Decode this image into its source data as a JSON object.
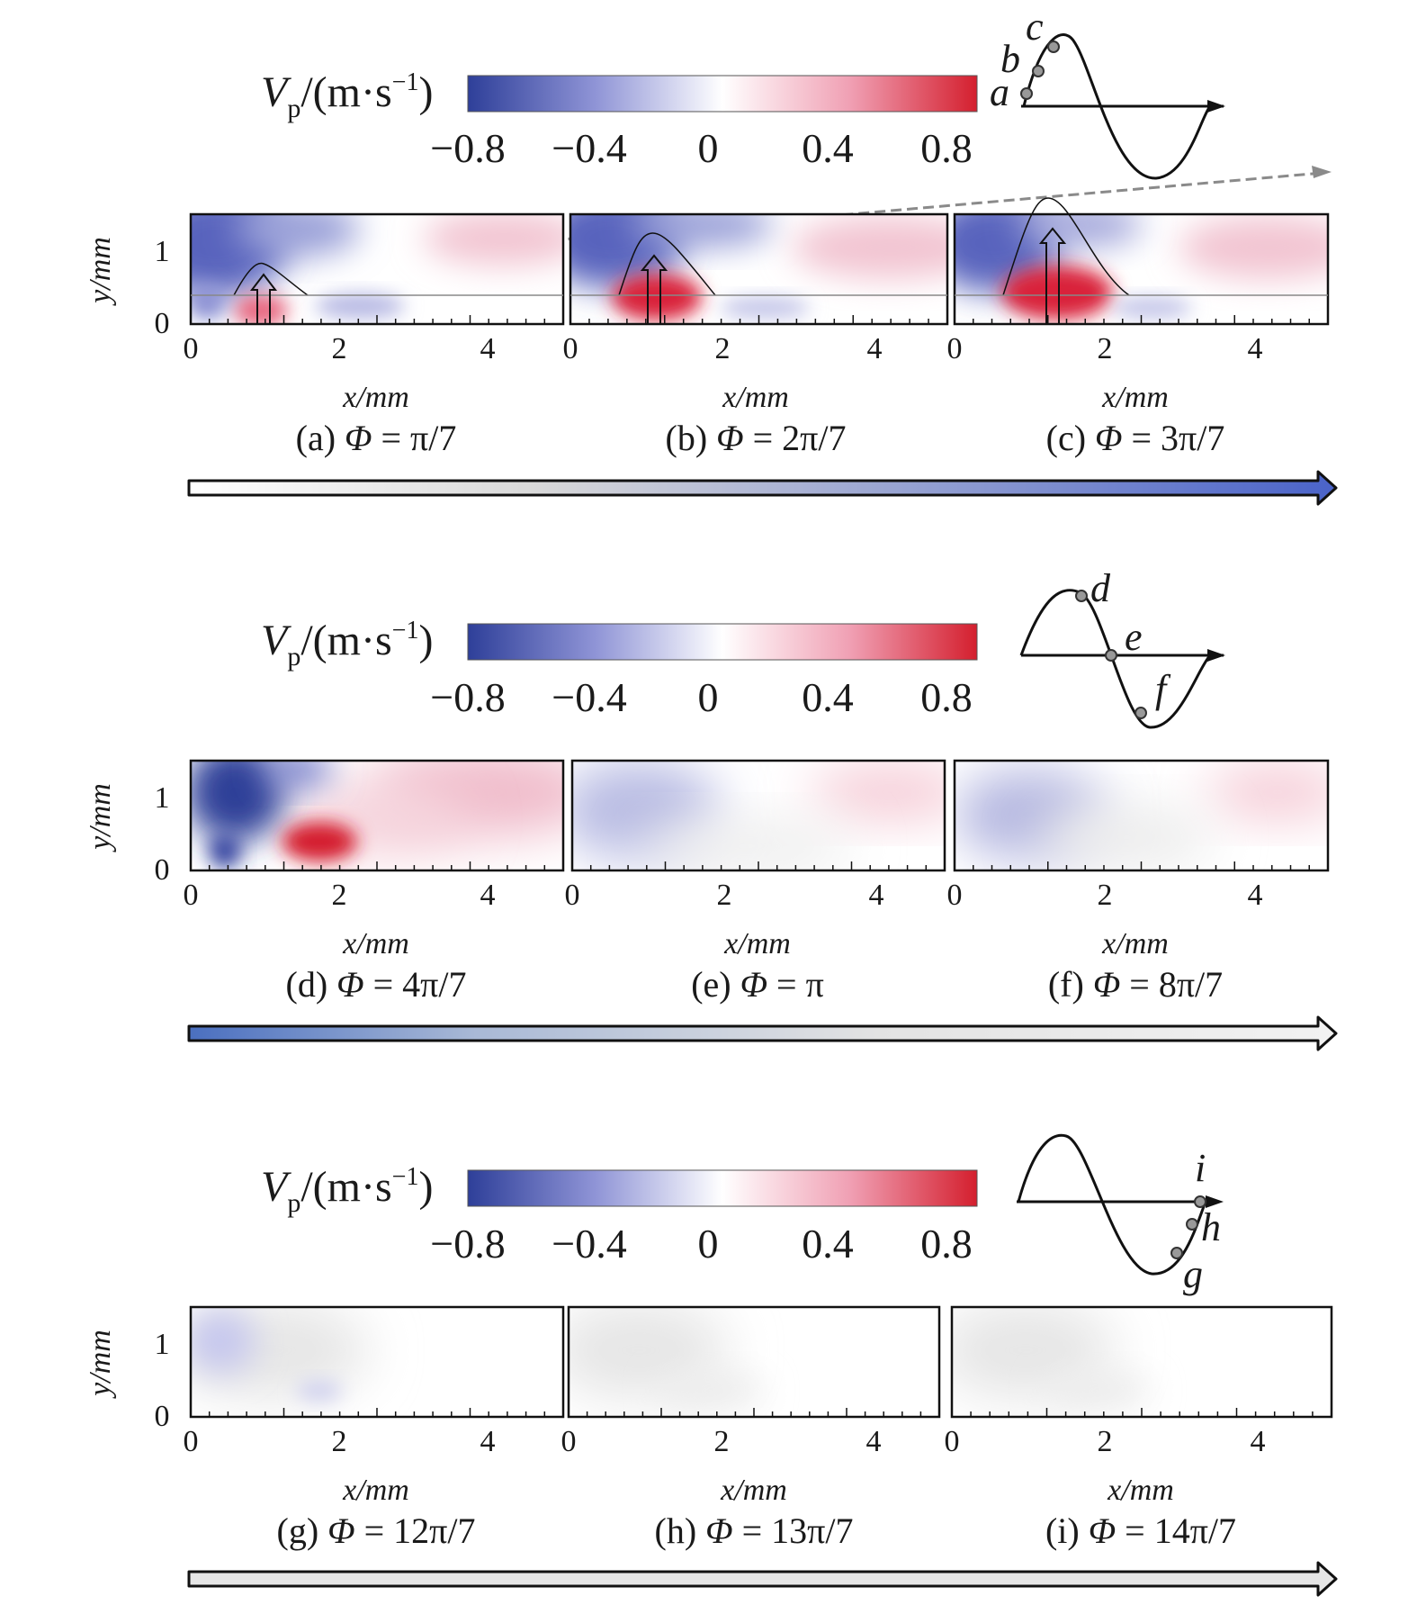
{
  "colorbar": {
    "label_main": "V",
    "label_sub": "p",
    "label_rest": "/(m·s",
    "label_exp": "−1",
    "label_close": ")",
    "ticks": [
      "−0.8",
      "−0.4",
      "0",
      "0.4",
      "0.8"
    ],
    "tick_values": [
      -0.8,
      -0.4,
      0,
      0.4,
      0.8
    ],
    "range": [
      -0.8,
      0.8
    ],
    "colors": [
      "#2e3f99",
      "#8f94d6",
      "#ffffff",
      "#f0a0b4",
      "#d41f2e"
    ]
  },
  "axes": {
    "xlabel": "x/mm",
    "ylabel": "y/mm",
    "xticks": [
      "0",
      "2",
      "4"
    ],
    "yticks": [
      "0",
      "1"
    ]
  },
  "rows": [
    {
      "panels": [
        {
          "letter": "(a)",
          "phi_symbol": "Φ",
          "phi_value": "= π/7"
        },
        {
          "letter": "(b)",
          "phi_symbol": "Φ",
          "phi_value": "= 2π/7"
        },
        {
          "letter": "(c)",
          "phi_symbol": "Φ",
          "phi_value": "= 3π/7"
        }
      ],
      "wave_points": [
        "a",
        "b",
        "c"
      ],
      "arrow_gradient": [
        "#ffffff",
        "#4a63c9"
      ]
    },
    {
      "panels": [
        {
          "letter": "(d)",
          "phi_symbol": "Φ",
          "phi_value": "= 4π/7"
        },
        {
          "letter": "(e)",
          "phi_symbol": "Φ",
          "phi_value": "= π"
        },
        {
          "letter": "(f)",
          "phi_symbol": "Φ",
          "phi_value": "= 8π/7"
        }
      ],
      "wave_points": [
        "d",
        "e",
        "f"
      ],
      "arrow_gradient": [
        "#4a6fc0",
        "#ffffff"
      ]
    },
    {
      "panels": [
        {
          "letter": "(g)",
          "phi_symbol": "Φ",
          "phi_value": "= 12π/7"
        },
        {
          "letter": "(h)",
          "phi_symbol": "Φ",
          "phi_value": "= 13π/7"
        },
        {
          "letter": "(i)",
          "phi_symbol": "Φ",
          "phi_value": "= 14π/7"
        }
      ],
      "wave_points": [
        "g",
        "h",
        "i"
      ],
      "arrow_gradient": [
        "#e6e6e6",
        "#e6e6e6"
      ]
    }
  ]
}
